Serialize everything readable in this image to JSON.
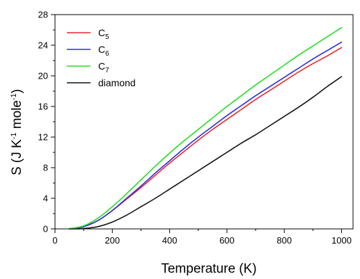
{
  "chart_data": {
    "type": "line",
    "title": "",
    "xlabel": "Temperature (K)",
    "ylabel": {
      "main": "S  (J K",
      "sup1": "-1",
      "mid": " mole",
      "sup2": "-1",
      "end": ")"
    },
    "xlim": [
      0,
      1040
    ],
    "ylim": [
      0,
      28
    ],
    "xticks": [
      0,
      200,
      400,
      600,
      800,
      1000
    ],
    "yticks": [
      0,
      4,
      8,
      12,
      16,
      20,
      24,
      28
    ],
    "x_minor_step": 100,
    "y_minor_step": 2,
    "grid": false,
    "legend_position": "top-left",
    "series": [
      {
        "name": "C",
        "sub": "5",
        "color": "#e8262a",
        "x": [
          50,
          100,
          150,
          200,
          250,
          300,
          350,
          400,
          450,
          500,
          550,
          600,
          650,
          700,
          750,
          800,
          850,
          900,
          950,
          1000
        ],
        "y": [
          0.02,
          0.3,
          1.1,
          2.4,
          3.9,
          5.4,
          7.0,
          8.6,
          10.1,
          11.6,
          13.0,
          14.3,
          15.6,
          16.9,
          18.1,
          19.3,
          20.5,
          21.6,
          22.6,
          23.7
        ]
      },
      {
        "name": "C",
        "sub": "6",
        "color": "#2a2ae0",
        "x": [
          50,
          100,
          150,
          200,
          250,
          300,
          350,
          400,
          450,
          500,
          550,
          600,
          650,
          700,
          750,
          800,
          850,
          900,
          950,
          1000
        ],
        "y": [
          0.02,
          0.3,
          1.1,
          2.4,
          4.0,
          5.6,
          7.3,
          8.9,
          10.5,
          12.0,
          13.4,
          14.8,
          16.1,
          17.4,
          18.6,
          19.8,
          21.0,
          22.2,
          23.3,
          24.4
        ]
      },
      {
        "name": "C",
        "sub": "7",
        "color": "#22dd22",
        "x": [
          50,
          100,
          150,
          200,
          250,
          300,
          350,
          400,
          450,
          500,
          550,
          600,
          650,
          700,
          750,
          800,
          850,
          900,
          950,
          1000
        ],
        "y": [
          0.03,
          0.4,
          1.4,
          2.9,
          4.6,
          6.4,
          8.2,
          9.9,
          11.5,
          13.0,
          14.5,
          16.0,
          17.4,
          18.8,
          20.1,
          21.4,
          22.7,
          23.9,
          25.1,
          26.3
        ]
      },
      {
        "name": "diamond",
        "sub": "",
        "color": "#111111",
        "x": [
          50,
          100,
          150,
          200,
          250,
          300,
          350,
          400,
          450,
          500,
          550,
          600,
          650,
          700,
          750,
          800,
          850,
          900,
          950,
          1000
        ],
        "y": [
          0.0,
          0.05,
          0.3,
          0.9,
          1.8,
          2.9,
          4.0,
          5.2,
          6.4,
          7.6,
          8.8,
          10.0,
          11.2,
          12.3,
          13.5,
          14.7,
          15.9,
          17.2,
          18.6,
          19.9
        ]
      }
    ]
  }
}
